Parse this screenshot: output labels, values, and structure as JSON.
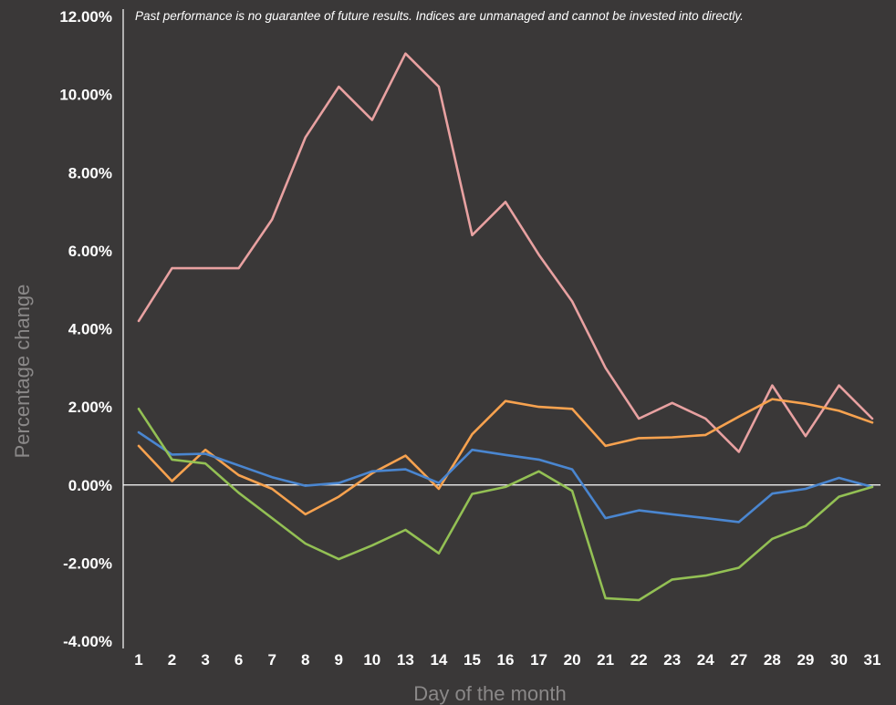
{
  "chart_data": {
    "type": "line",
    "title": "",
    "annotation": "Past performance is no guarantee of future results. Indices are unmanaged and cannot be invested into directly.",
    "xlabel": "Day of the month",
    "ylabel": "Percentage change",
    "ylim": [
      -4,
      12
    ],
    "yticks": [
      -4,
      -2,
      0,
      2,
      4,
      6,
      8,
      10,
      12
    ],
    "ytick_labels": [
      "-4.00%",
      "-2.00%",
      "0.00%",
      "2.00%",
      "4.00%",
      "6.00%",
      "8.00%",
      "10.00%",
      "12.00%"
    ],
    "categories": [
      "1",
      "2",
      "3",
      "6",
      "7",
      "8",
      "9",
      "10",
      "13",
      "14",
      "15",
      "16",
      "17",
      "20",
      "21",
      "22",
      "23",
      "24",
      "27",
      "28",
      "29",
      "30",
      "31"
    ],
    "grid": false,
    "zero_line": true,
    "legend": "none",
    "series": [
      {
        "color": "#e8a1a1",
        "values": [
          4.2,
          5.55,
          5.55,
          5.55,
          6.8,
          8.9,
          10.2,
          9.35,
          11.05,
          10.2,
          6.4,
          7.25,
          5.9,
          4.7,
          3.0,
          1.7,
          2.1,
          1.7,
          0.85,
          2.55,
          1.25,
          2.55,
          1.7
        ]
      },
      {
        "color": "#f7a24f",
        "values": [
          1.0,
          0.1,
          0.9,
          0.25,
          -0.1,
          -0.75,
          -0.3,
          0.3,
          0.75,
          -0.1,
          1.3,
          2.15,
          2.0,
          1.95,
          1.0,
          1.2,
          1.22,
          1.28,
          1.75,
          2.2,
          2.08,
          1.9,
          1.6
        ]
      },
      {
        "color": "#4a86d0",
        "values": [
          1.35,
          0.78,
          0.8,
          0.5,
          0.2,
          -0.02,
          0.05,
          0.35,
          0.4,
          0.05,
          0.9,
          0.77,
          0.65,
          0.4,
          -0.85,
          -0.65,
          -0.75,
          -0.85,
          -0.95,
          -0.22,
          -0.1,
          0.18,
          -0.05
        ]
      },
      {
        "color": "#93c054",
        "values": [
          1.95,
          0.65,
          0.55,
          -0.2,
          -0.85,
          -1.5,
          -1.9,
          -1.55,
          -1.15,
          -1.75,
          -0.23,
          -0.05,
          0.35,
          -0.15,
          -2.9,
          -2.95,
          -2.42,
          -2.32,
          -2.12,
          -1.38,
          -1.05,
          -0.3,
          -0.05
        ]
      }
    ]
  }
}
